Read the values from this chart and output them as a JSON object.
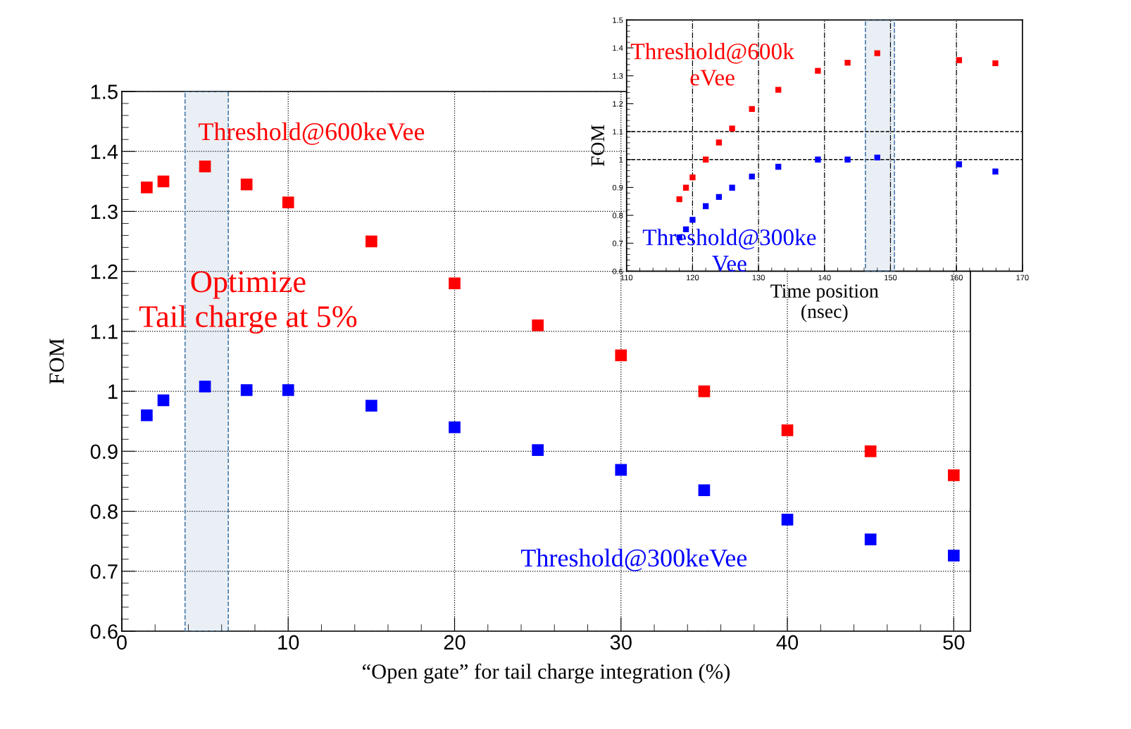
{
  "chart_data": [
    {
      "type": "scatter",
      "xlabel": "“Open gate” for tail charge integration (%)",
      "ylabel": "FOM",
      "marker": "square",
      "grid": true,
      "x": [
        1.5,
        2.5,
        5,
        7.5,
        10,
        15,
        20,
        25,
        30,
        35,
        40,
        45,
        50
      ],
      "series": [
        {
          "name": "Threshold@600keVee",
          "color": "#ff0000",
          "values": [
            1.34,
            1.35,
            1.375,
            1.345,
            1.315,
            1.25,
            1.18,
            1.11,
            1.06,
            1.0,
            0.935,
            0.9,
            0.86
          ]
        },
        {
          "name": "Threshold@300keVee",
          "color": "#0000ff",
          "values": [
            0.96,
            0.985,
            1.008,
            1.002,
            1.002,
            0.976,
            0.94,
            0.902,
            0.869,
            0.835,
            0.786,
            0.753,
            0.726
          ]
        }
      ],
      "xlim": [
        0,
        51
      ],
      "ylim": [
        0.6,
        1.5
      ],
      "xticks": [
        0,
        10,
        20,
        30,
        40,
        50
      ],
      "yticks": [
        0.6,
        0.7,
        0.8,
        0.9,
        1,
        1.1,
        1.2,
        1.3,
        1.4,
        1.5
      ],
      "bands": [
        {
          "axis": "x",
          "from": 3.8,
          "to": 6.4,
          "color": "#4a7aa8"
        }
      ],
      "annotations": [
        "Optimize\nTail charge at 5%"
      ]
    },
    {
      "type": "scatter",
      "xlabel": "Time position\n(nsec)",
      "ylabel": "FOM",
      "marker": "square",
      "grid": "x",
      "x": [
        118,
        119,
        120,
        122,
        124,
        126,
        129,
        133,
        139,
        143.5,
        148,
        160.4,
        165.9
      ],
      "series": [
        {
          "name": "Threshold@600k\neVee",
          "color": "#ff0000",
          "values": [
            0.858,
            0.899,
            0.936,
            1.0,
            1.061,
            1.111,
            1.181,
            1.25,
            1.318,
            1.347,
            1.381,
            1.356,
            1.345
          ]
        },
        {
          "name": "Threshold@300ke\nVee",
          "color": "#0000ff",
          "values": [
            0.721,
            0.75,
            0.784,
            0.833,
            0.866,
            0.899,
            0.939,
            0.974,
            1.0,
            1.0,
            1.007,
            0.983,
            0.957
          ]
        }
      ],
      "xlim": [
        110,
        170
      ],
      "ylim": [
        0.6,
        1.5
      ],
      "xticks": [
        110,
        120,
        130,
        140,
        150,
        160,
        170
      ],
      "yticks": [
        0.6,
        0.7,
        0.8,
        0.9,
        1,
        1.1,
        1.2,
        1.3,
        1.4,
        1.5
      ],
      "ref_lines": [
        {
          "axis": "y",
          "value": 1,
          "line_style": "dashed",
          "color": "#000000"
        },
        {
          "axis": "y",
          "value": 1.1,
          "line_style": "dashed",
          "color": "#000000"
        }
      ],
      "bands": [
        {
          "axis": "x",
          "from": 146.2,
          "to": 150.6,
          "color": "#4a7aa8"
        }
      ]
    }
  ]
}
